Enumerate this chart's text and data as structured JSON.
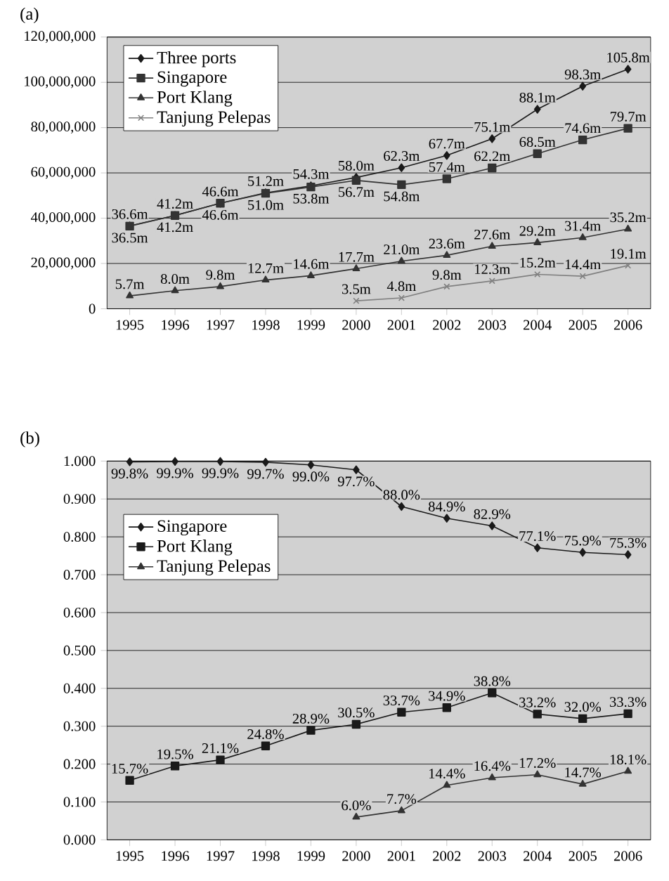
{
  "chart_data": [
    {
      "type": "line",
      "title": "(a)",
      "categories": [
        "1995",
        "1996",
        "1997",
        "1998",
        "1999",
        "2000",
        "2001",
        "2002",
        "2003",
        "2004",
        "2005",
        "2006"
      ],
      "ylim": [
        0,
        120000000
      ],
      "yticks": [
        {
          "value": 0,
          "label": "0"
        },
        {
          "value": 20000000,
          "label": "20,000,000"
        },
        {
          "value": 40000000,
          "label": "40,000,000"
        },
        {
          "value": 60000000,
          "label": "60,000,000"
        },
        {
          "value": 80000000,
          "label": "80,000,000"
        },
        {
          "value": 100000000,
          "label": "100,000,000"
        },
        {
          "value": 120000000,
          "label": "120,000,000"
        }
      ],
      "grid": "y",
      "legend": "top left",
      "line_style": "solid",
      "series": [
        {
          "name": "Three ports",
          "color": "#1a1a1a",
          "marker": "diamond",
          "values": [
            36600000,
            41200000,
            46600000,
            51200000,
            54300000,
            58000000,
            62300000,
            67700000,
            75100000,
            88100000,
            98300000,
            105800000
          ],
          "value_labels": [
            "36.6m",
            "41.2m",
            "46.6m",
            "51.2m",
            "54.3m",
            "58.0m",
            "62.3m",
            "67.7m",
            "75.1m",
            "88.1m",
            "98.3m",
            "105.8m"
          ]
        },
        {
          "name": "Singapore",
          "color": "#333333",
          "marker": "square",
          "values": [
            36500000,
            41200000,
            46600000,
            51000000,
            53800000,
            56700000,
            54800000,
            57400000,
            62200000,
            68500000,
            74600000,
            79700000
          ],
          "value_labels": [
            "36.5m",
            "41.2m",
            "46.6m",
            "51.0m",
            "53.8m",
            "56.7m",
            "54.8m",
            "57.4m",
            "62.2m",
            "68.5m",
            "74.6m",
            "79.7m"
          ]
        },
        {
          "name": "Port Klang",
          "color": "#333333",
          "marker": "triangle",
          "values": [
            5700000,
            8000000,
            9800000,
            12700000,
            14600000,
            17700000,
            21000000,
            23600000,
            27600000,
            29200000,
            31400000,
            35200000
          ],
          "value_labels": [
            "5.7m",
            "8.0m",
            "9.8m",
            "12.7m",
            "14.6m",
            "17.7m",
            "21.0m",
            "23.6m",
            "27.6m",
            "29.2m",
            "31.4m",
            "35.2m"
          ]
        },
        {
          "name": "Tanjung Pelepas",
          "color": "#808080",
          "marker": "cross",
          "values": [
            null,
            null,
            null,
            null,
            null,
            3500000,
            4800000,
            9800000,
            12300000,
            15200000,
            14400000,
            19100000
          ],
          "value_labels": [
            null,
            null,
            null,
            null,
            null,
            "3.5m",
            "4.8m",
            "9.8m",
            "12.3m",
            "15.2m",
            "14.4m",
            "19.1m"
          ]
        }
      ]
    },
    {
      "type": "line",
      "title": "(b)",
      "categories": [
        "1995",
        "1996",
        "1997",
        "1998",
        "1999",
        "2000",
        "2001",
        "2002",
        "2003",
        "2004",
        "2005",
        "2006"
      ],
      "ylim": [
        0,
        1
      ],
      "yticks": [
        {
          "value": 0,
          "label": "0.000"
        },
        {
          "value": 0.1,
          "label": "0.100"
        },
        {
          "value": 0.2,
          "label": "0.200"
        },
        {
          "value": 0.3,
          "label": "0.300"
        },
        {
          "value": 0.4,
          "label": "0.400"
        },
        {
          "value": 0.5,
          "label": "0.500"
        },
        {
          "value": 0.6,
          "label": "0.600"
        },
        {
          "value": 0.7,
          "label": "0.700"
        },
        {
          "value": 0.8,
          "label": "0.800"
        },
        {
          "value": 0.9,
          "label": "0.900"
        },
        {
          "value": 1,
          "label": "1.000"
        }
      ],
      "grid": "y",
      "legend": "left",
      "line_style": "solid",
      "series": [
        {
          "name": "Singapore",
          "color": "#1a1a1a",
          "marker": "diamond",
          "values": [
            0.998,
            0.999,
            0.999,
            0.997,
            0.99,
            0.977,
            0.88,
            0.849,
            0.829,
            0.771,
            0.759,
            0.753
          ],
          "value_labels": [
            "99.8%",
            "99.9%",
            "99.9%",
            "99.7%",
            "99.0%",
            "97.7%",
            "88.0%",
            "84.9%",
            "82.9%",
            "77.1%",
            "75.9%",
            "75.3%"
          ]
        },
        {
          "name": "Port Klang",
          "color": "#1a1a1a",
          "marker": "square",
          "values": [
            0.157,
            0.195,
            0.211,
            0.248,
            0.289,
            0.305,
            0.337,
            0.349,
            0.388,
            0.332,
            0.32,
            0.333
          ],
          "value_labels": [
            "15.7%",
            "19.5%",
            "21.1%",
            "24.8%",
            "28.9%",
            "30.5%",
            "33.7%",
            "34.9%",
            "38.8%",
            "33.2%",
            "32.0%",
            "33.3%"
          ]
        },
        {
          "name": "Tanjung Pelepas",
          "color": "#333333",
          "marker": "triangle",
          "values": [
            null,
            null,
            null,
            null,
            null,
            0.06,
            0.077,
            0.144,
            0.164,
            0.172,
            0.147,
            0.181
          ],
          "value_labels": [
            null,
            null,
            null,
            null,
            null,
            "6.0%",
            "7.7%",
            "14.4%",
            "16.4%",
            "17.2%",
            "14.7%",
            "18.1%"
          ]
        }
      ]
    }
  ]
}
